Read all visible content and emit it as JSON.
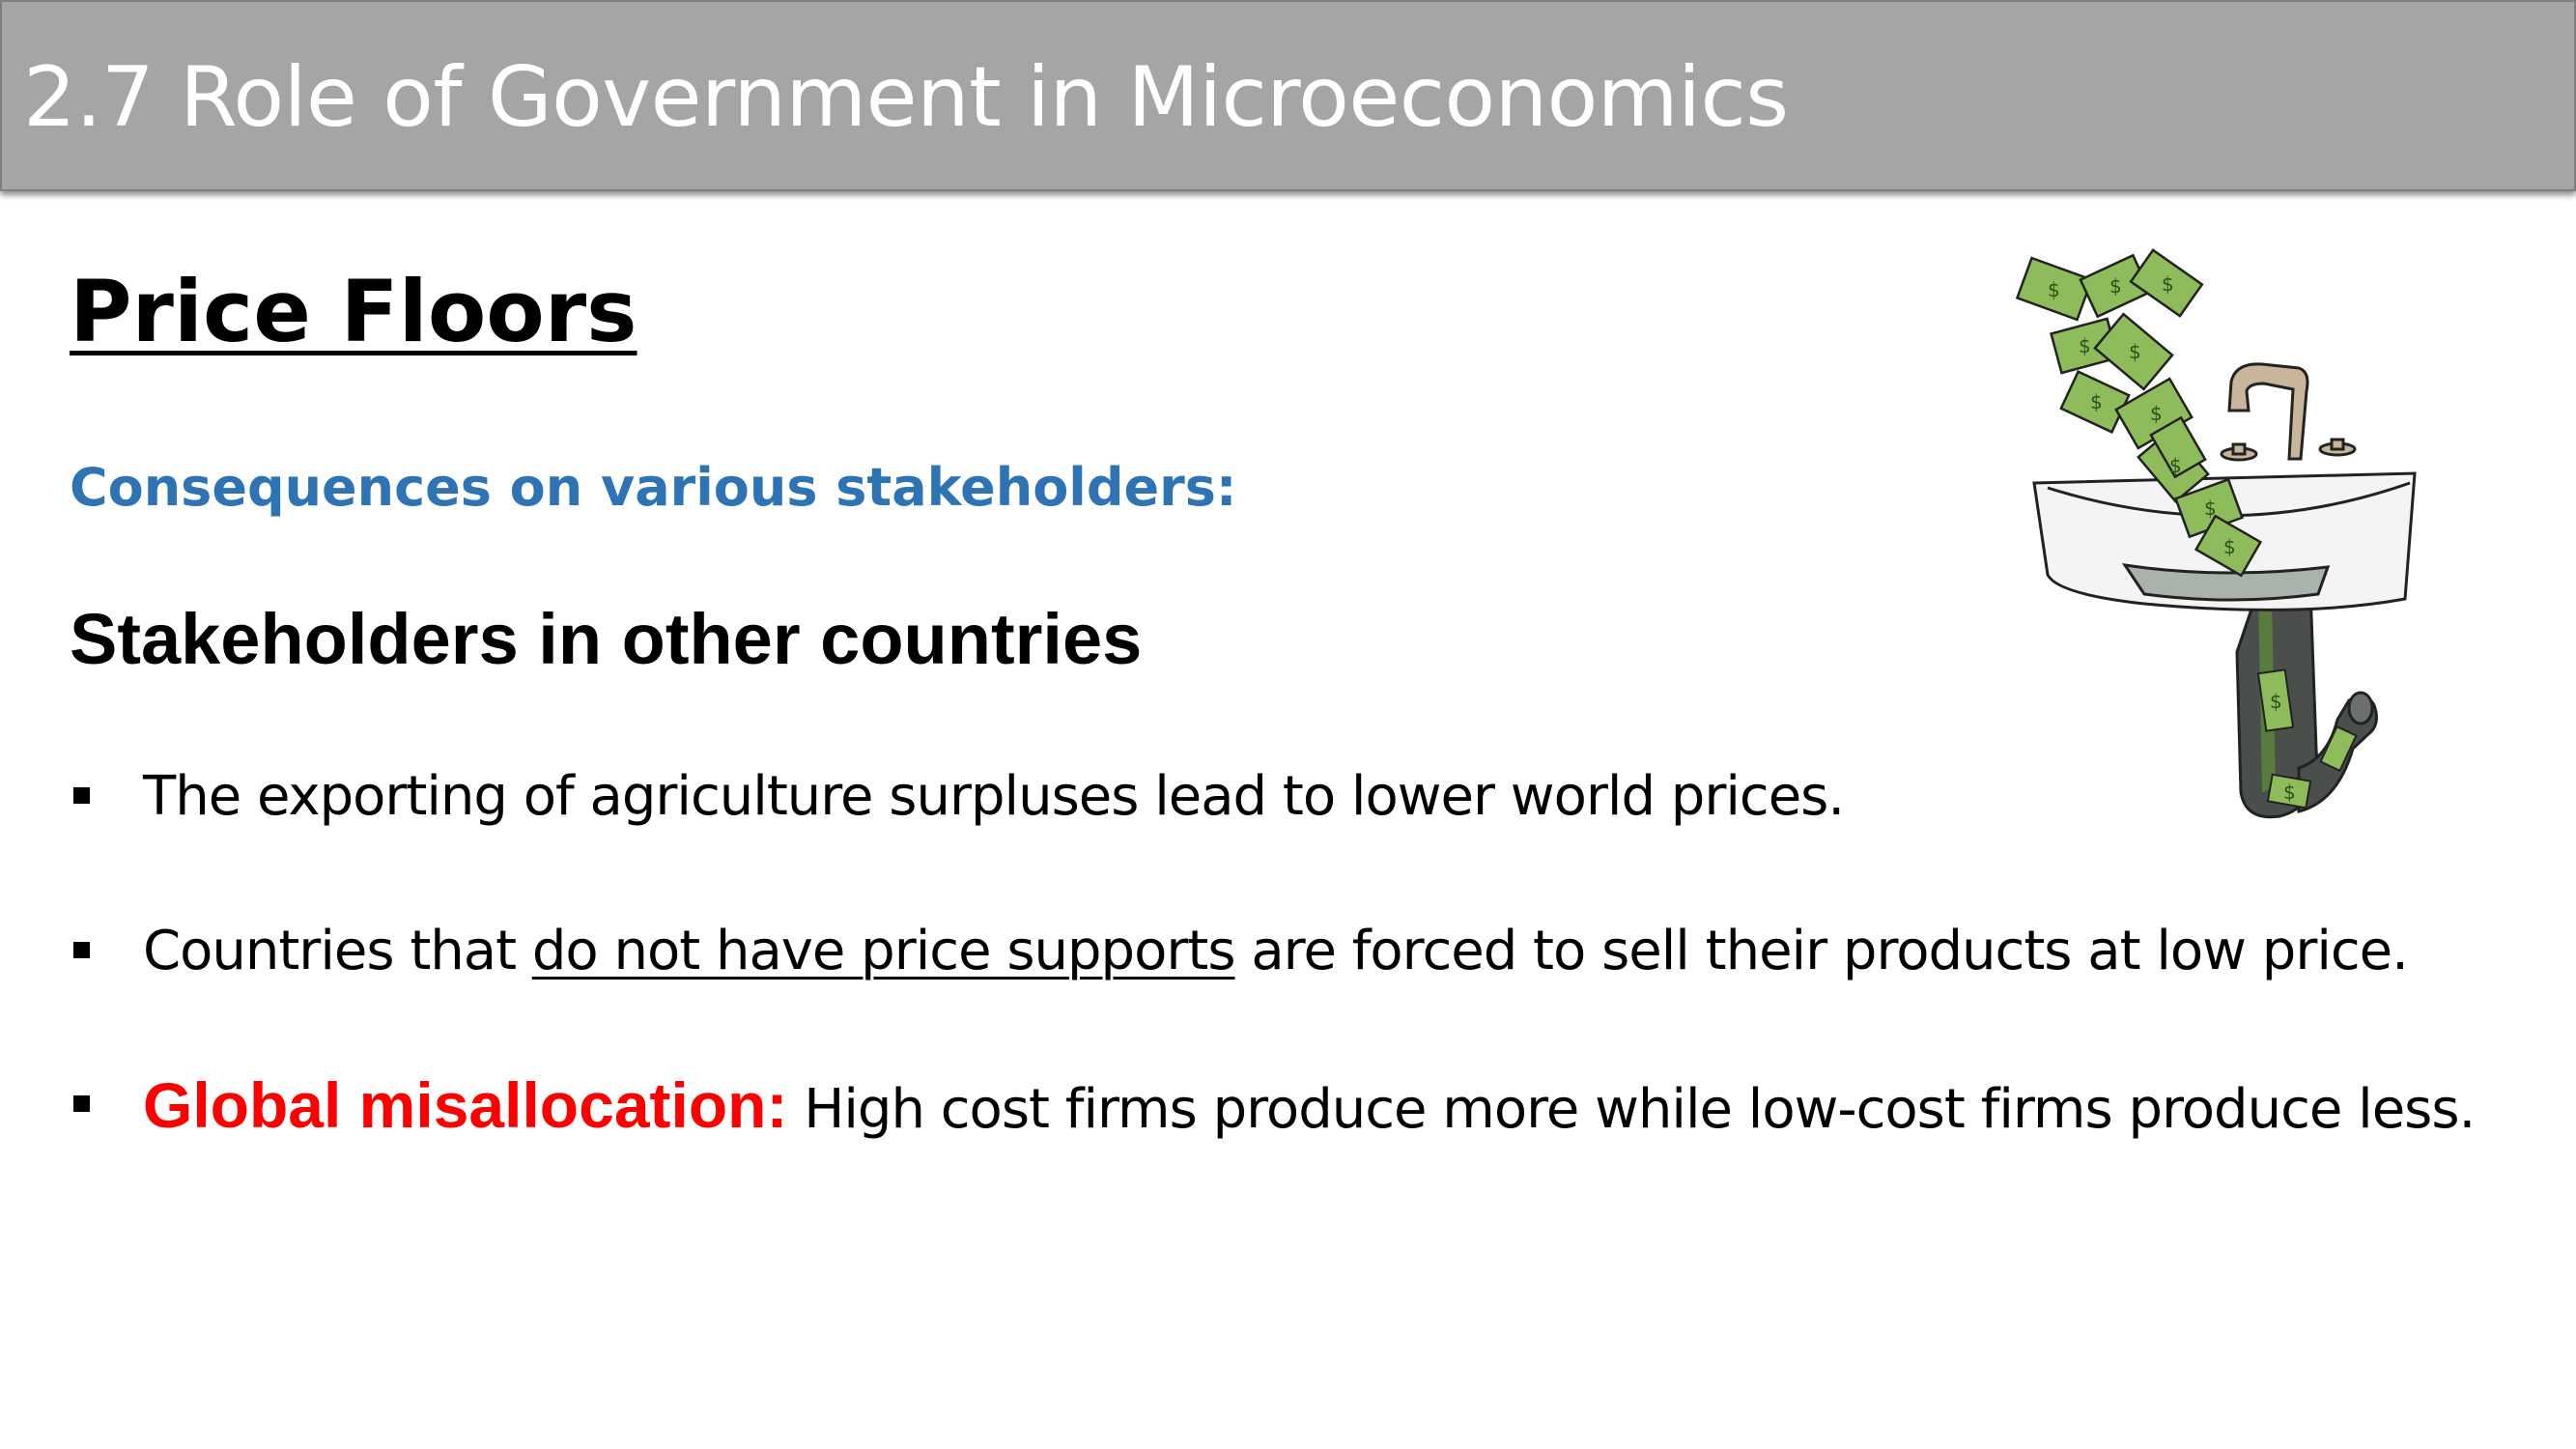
{
  "slide": {
    "title": "2.7 Role of Government in Microeconomics",
    "heading": "Price Floors",
    "subheading": "Consequences on various stakeholders:",
    "section_title": "Stakeholders in other countries",
    "bullets": [
      {
        "text": "The exporting of agriculture surpluses lead to lower world prices."
      },
      {
        "prefix": "Countries that ",
        "underlined": "do not have price supports",
        "suffix": " are forced to sell their products at low price."
      },
      {
        "label": "Global misallocation:",
        "text": " High cost firms produce more while low-cost firms produce less."
      }
    ]
  },
  "illustration": {
    "icon": "money-down-drain-illustration",
    "bill_symbol": "$",
    "colors": {
      "bill": "#8fbc5a",
      "bill_dark": "#5f8f2f",
      "sink": "#f4f4f4",
      "water": "#a9b3ab",
      "pipe": "#4a4f4c",
      "faucet": "#c8b59a"
    }
  },
  "theme": {
    "title_bar": "#a5a5a5",
    "subheading": "#2e74b5",
    "accent_red": "#ff0000"
  }
}
